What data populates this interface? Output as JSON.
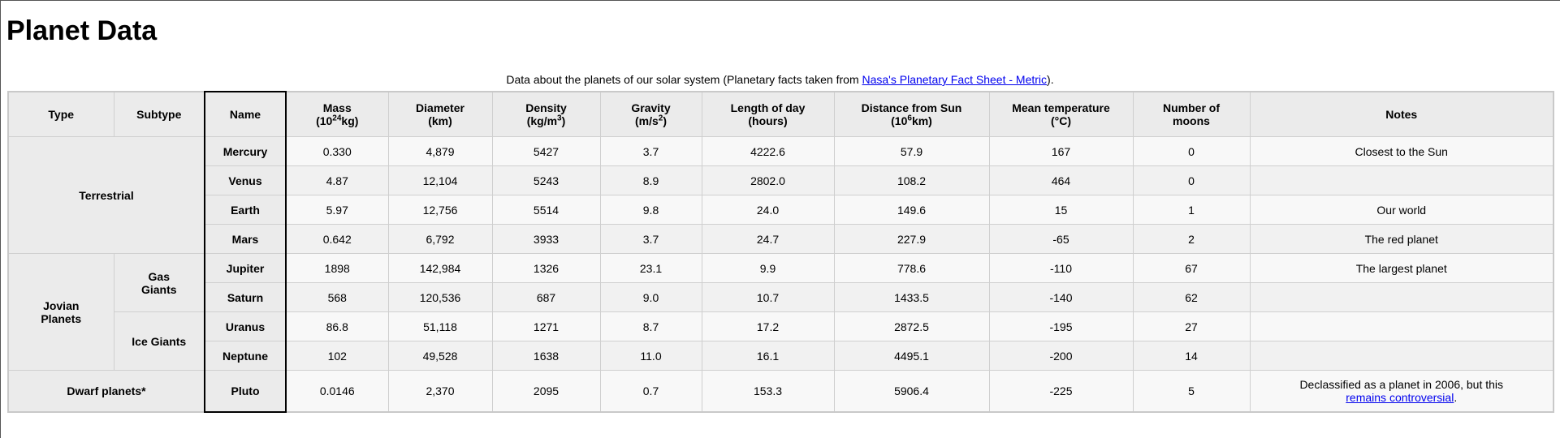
{
  "page": {
    "title": "Planet Data"
  },
  "caption": {
    "before": "Data about the planets of our solar system (Planetary facts taken from ",
    "link": "Nasa's Planetary Fact Sheet - Metric",
    "after": ")."
  },
  "headers": {
    "type": "Type",
    "subtype": "Subtype",
    "name": "Name",
    "mass": "Mass",
    "mass_unit_pre": "(10",
    "mass_unit_sup": "24",
    "mass_unit_post": "kg)",
    "diameter": "Diameter",
    "diameter_unit": "(km)",
    "density": "Density",
    "density_unit_pre": "(kg/m",
    "density_unit_sup": "3",
    "density_unit_post": ")",
    "gravity": "Gravity",
    "gravity_unit_pre": "(m/s",
    "gravity_unit_sup": "2",
    "gravity_unit_post": ")",
    "length_of_day": "Length of day",
    "length_of_day_unit": "(hours)",
    "distance": "Distance from Sun",
    "distance_unit_pre": "(10",
    "distance_unit_sup": "6",
    "distance_unit_post": "km)",
    "mean_temp": "Mean temperature",
    "mean_temp_unit": "(°C)",
    "moons": "Number of",
    "moons_2": "moons",
    "notes": "Notes"
  },
  "groups": {
    "terrestrial": "Terrestrial",
    "jovian_1": "Jovian",
    "jovian_2": "Planets",
    "gas_giants_1": "Gas",
    "gas_giants_2": "Giants",
    "ice_giants": "Ice Giants",
    "dwarf": "Dwarf planets*"
  },
  "planets": [
    {
      "name": "Mercury",
      "mass": "0.330",
      "diameter": "4,879",
      "density": "5427",
      "gravity": "3.7",
      "day": "4222.6",
      "distance": "57.9",
      "temp": "167",
      "moons": "0",
      "notes": "Closest to the Sun"
    },
    {
      "name": "Venus",
      "mass": "4.87",
      "diameter": "12,104",
      "density": "5243",
      "gravity": "8.9",
      "day": "2802.0",
      "distance": "108.2",
      "temp": "464",
      "moons": "0",
      "notes": ""
    },
    {
      "name": "Earth",
      "mass": "5.97",
      "diameter": "12,756",
      "density": "5514",
      "gravity": "9.8",
      "day": "24.0",
      "distance": "149.6",
      "temp": "15",
      "moons": "1",
      "notes": "Our world"
    },
    {
      "name": "Mars",
      "mass": "0.642",
      "diameter": "6,792",
      "density": "3933",
      "gravity": "3.7",
      "day": "24.7",
      "distance": "227.9",
      "temp": "-65",
      "moons": "2",
      "notes": "The red planet"
    },
    {
      "name": "Jupiter",
      "mass": "1898",
      "diameter": "142,984",
      "density": "1326",
      "gravity": "23.1",
      "day": "9.9",
      "distance": "778.6",
      "temp": "-110",
      "moons": "67",
      "notes": "The largest planet"
    },
    {
      "name": "Saturn",
      "mass": "568",
      "diameter": "120,536",
      "density": "687",
      "gravity": "9.0",
      "day": "10.7",
      "distance": "1433.5",
      "temp": "-140",
      "moons": "62",
      "notes": ""
    },
    {
      "name": "Uranus",
      "mass": "86.8",
      "diameter": "51,118",
      "density": "1271",
      "gravity": "8.7",
      "day": "17.2",
      "distance": "2872.5",
      "temp": "-195",
      "moons": "27",
      "notes": ""
    },
    {
      "name": "Neptune",
      "mass": "102",
      "diameter": "49,528",
      "density": "1638",
      "gravity": "11.0",
      "day": "16.1",
      "distance": "4495.1",
      "temp": "-200",
      "moons": "14",
      "notes": ""
    },
    {
      "name": "Pluto",
      "mass": "0.0146",
      "diameter": "2,370",
      "density": "2095",
      "gravity": "0.7",
      "day": "153.3",
      "distance": "5906.4",
      "temp": "-225",
      "moons": "5",
      "notes": "Declassified as a planet in 2006, but this",
      "notes_link": "remains controversial",
      "notes_after": "."
    }
  ]
}
